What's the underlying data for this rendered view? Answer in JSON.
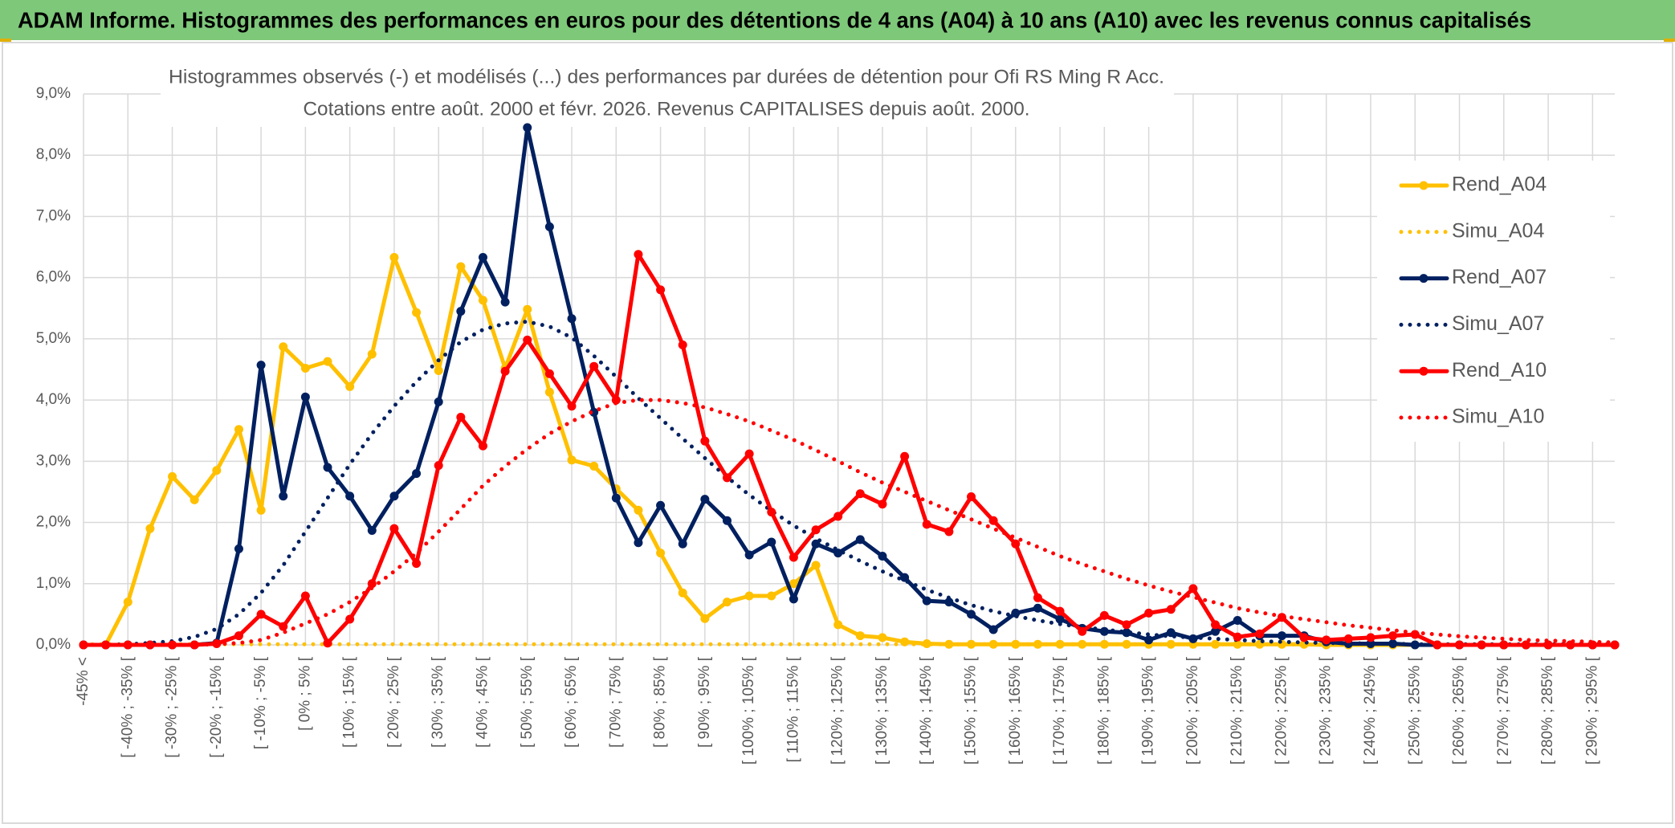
{
  "header": {
    "title": "ADAM Informe. Histogrammes des performances en euros pour des détentions de 4 ans (A04) à 10 ans (A10) avec les revenus connus capitalisés"
  },
  "chart_data": {
    "type": "line",
    "title": "Histogrammes observés (-) et modélisés (...) des performances par durées de détention pour Ofi RS Ming R Acc.",
    "subtitle": "Cotations entre août. 2000 et févr. 2026. Revenus CAPITALISES depuis août. 2000.",
    "categories": [
      "-45% <",
      null,
      "[ -40% ; -35% [",
      null,
      "[ -30% ; -25% [",
      null,
      "[ -20% ; -15% [",
      null,
      "[ -10% ; -5% [",
      null,
      "[ 0% ; 5% [",
      null,
      "[ 10% ; 15% [",
      null,
      "[ 20% ; 25% [",
      null,
      "[ 30% ; 35% [",
      null,
      "[ 40% ; 45% [",
      null,
      "[ 50% ; 55% [",
      null,
      "[ 60% ; 65% [",
      null,
      "[ 70% ; 75% [",
      null,
      "[ 80% ; 85% [",
      null,
      "[ 90% ; 95% [",
      null,
      "[ 100% ; 105% [",
      null,
      "[ 110% ; 115% [",
      null,
      "[ 120% ; 125% [",
      null,
      "[ 130% ; 135% [",
      null,
      "[ 140% ; 145% [",
      null,
      "[ 150% ; 155% [",
      null,
      "[ 160% ; 165% [",
      null,
      "[ 170% ; 175% [",
      null,
      "[ 180% ; 185% [",
      null,
      "[ 190% ; 195% [",
      null,
      "[ 200% ; 205% [",
      null,
      "[ 210% ; 215% [",
      null,
      "[ 220% ; 225% [",
      null,
      "[ 230% ; 235% [",
      null,
      "[ 240% ; 245% [",
      null,
      "[ 250% ; 255% [",
      null,
      "[ 260% ; 265% [",
      null,
      "[ 270% ; 275% [",
      null,
      "[ 280% ; 285% [",
      null,
      "[ 290% ; 295% [",
      null
    ],
    "series": [
      {
        "name": "Rend_A04",
        "color": "#FFC000",
        "dash": "solid",
        "marker": true,
        "values": [
          0,
          0,
          0.7,
          1.9,
          2.75,
          2.37,
          2.85,
          3.52,
          2.2,
          4.87,
          4.52,
          4.63,
          4.22,
          4.75,
          6.33,
          5.43,
          4.48,
          6.18,
          5.63,
          4.52,
          5.48,
          4.13,
          3.02,
          2.92,
          2.55,
          2.2,
          1.5,
          0.85,
          0.43,
          0.7,
          0.8,
          0.8,
          1.0,
          1.3,
          0.33,
          0.15,
          0.12,
          0.05,
          0.02,
          0.01,
          0.01,
          0.01,
          0.01,
          0.01,
          0.01,
          0.01,
          0.01,
          0.01,
          0.01,
          0.01,
          0.01,
          0.01,
          0.01,
          0.01,
          0.01,
          0.01,
          0,
          0,
          0,
          0,
          0,
          0,
          0,
          0,
          0,
          0,
          0,
          0,
          0,
          0
        ]
      },
      {
        "name": "Simu_A04",
        "color": "#FFC000",
        "dash": "dotted",
        "marker": false,
        "values": [
          0.01,
          0.01,
          0.01,
          0.01,
          0.01,
          0.01,
          0.01,
          0.01,
          0.01,
          0.01,
          0.01,
          0.01,
          0.01,
          0.01,
          0.01,
          0.01,
          0.01,
          0.01,
          0.01,
          0.01,
          0.01,
          0.01,
          0.01,
          0.01,
          0.01,
          0.01,
          0.01,
          0.01,
          0.01,
          0.01,
          0.01,
          0.01,
          0.01,
          0.01,
          0.01,
          0.01,
          0.01,
          0.01,
          0.01,
          0.01,
          0.01,
          0.01,
          0.01,
          0.01,
          0.01,
          0.01,
          0.01,
          0.01,
          0.01,
          0.01,
          0.01,
          0.01,
          0.01,
          0.01,
          0.01,
          0.01,
          0,
          0,
          0,
          0,
          0,
          0,
          0,
          0,
          0,
          0,
          0,
          0,
          0,
          0
        ]
      },
      {
        "name": "Rend_A07",
        "color": "#002060",
        "dash": "solid",
        "marker": true,
        "values": [
          0,
          0,
          0,
          0,
          0,
          0,
          0.03,
          1.57,
          4.57,
          2.43,
          4.05,
          2.9,
          2.43,
          1.87,
          2.43,
          2.8,
          3.97,
          5.45,
          6.33,
          5.6,
          8.45,
          6.83,
          5.33,
          3.8,
          2.4,
          1.67,
          2.28,
          1.65,
          2.38,
          2.03,
          1.47,
          1.68,
          0.75,
          1.65,
          1.5,
          1.72,
          1.45,
          1.1,
          0.72,
          0.7,
          0.5,
          0.25,
          0.52,
          0.6,
          0.42,
          0.27,
          0.22,
          0.2,
          0.08,
          0.2,
          0.1,
          0.22,
          0.4,
          0.15,
          0.15,
          0.15,
          0.05,
          0.02,
          0.02,
          0.02,
          0,
          0,
          0,
          0,
          0,
          0,
          0,
          0,
          0,
          0
        ]
      },
      {
        "name": "Simu_A07",
        "color": "#002060",
        "dash": "dotted",
        "marker": false,
        "values": [
          0,
          0,
          0.01,
          0.03,
          0.06,
          0.13,
          0.26,
          0.5,
          0.85,
          1.3,
          1.85,
          2.4,
          2.95,
          3.45,
          3.9,
          4.3,
          4.65,
          4.95,
          5.15,
          5.25,
          5.28,
          5.2,
          5.02,
          4.72,
          4.38,
          4.03,
          3.7,
          3.37,
          3.05,
          2.74,
          2.45,
          2.19,
          1.95,
          1.74,
          1.55,
          1.37,
          1.2,
          1.05,
          0.9,
          0.77,
          0.65,
          0.55,
          0.47,
          0.4,
          0.34,
          0.29,
          0.25,
          0.21,
          0.17,
          0.14,
          0.12,
          0.1,
          0.08,
          0.06,
          0.05,
          0.04,
          0.03,
          0.03,
          0.02,
          0.02,
          0.01,
          0.01,
          0.01,
          0.01,
          0.01,
          0.01,
          0.01,
          0.01,
          0.01,
          0.01
        ]
      },
      {
        "name": "Rend_A10",
        "color": "#FF0000",
        "dash": "solid",
        "marker": true,
        "values": [
          0,
          0,
          0,
          0,
          0,
          0,
          0.02,
          0.15,
          0.5,
          0.3,
          0.8,
          0.03,
          0.42,
          1.0,
          1.9,
          1.33,
          2.93,
          3.72,
          3.25,
          4.47,
          4.98,
          4.43,
          3.9,
          4.55,
          4.0,
          6.38,
          5.8,
          4.9,
          3.33,
          2.73,
          3.12,
          2.17,
          1.43,
          1.88,
          2.1,
          2.47,
          2.3,
          3.08,
          1.97,
          1.85,
          2.42,
          2.03,
          1.65,
          0.77,
          0.55,
          0.22,
          0.48,
          0.33,
          0.52,
          0.58,
          0.92,
          0.33,
          0.13,
          0.18,
          0.45,
          0.12,
          0.08,
          0.1,
          0.12,
          0.15,
          0.17,
          0,
          0,
          0,
          0,
          0,
          0,
          0,
          0,
          0
        ]
      },
      {
        "name": "Simu_A10",
        "color": "#FF0000",
        "dash": "dotted",
        "marker": false,
        "values": [
          0,
          0,
          0,
          0,
          0,
          0,
          0.01,
          0.03,
          0.08,
          0.2,
          0.35,
          0.5,
          0.7,
          0.93,
          1.2,
          1.5,
          1.85,
          2.22,
          2.6,
          2.92,
          3.2,
          3.45,
          3.65,
          3.82,
          3.95,
          4.0,
          4.0,
          3.95,
          3.88,
          3.77,
          3.65,
          3.5,
          3.35,
          3.18,
          3.0,
          2.82,
          2.65,
          2.5,
          2.35,
          2.2,
          2.05,
          1.9,
          1.75,
          1.6,
          1.45,
          1.32,
          1.2,
          1.08,
          0.97,
          0.87,
          0.78,
          0.69,
          0.6,
          0.53,
          0.47,
          0.42,
          0.37,
          0.32,
          0.28,
          0.24,
          0.2,
          0.17,
          0.14,
          0.12,
          0.1,
          0.08,
          0.07,
          0.06,
          0.05,
          0.04
        ]
      }
    ],
    "ylim": [
      0,
      9
    ],
    "yticks": [
      {
        "value": 0,
        "label": "0,0%"
      },
      {
        "value": 1,
        "label": "1,0%"
      },
      {
        "value": 2,
        "label": "2,0%"
      },
      {
        "value": 3,
        "label": "3,0%"
      },
      {
        "value": 4,
        "label": "4,0%"
      },
      {
        "value": 5,
        "label": "5,0%"
      },
      {
        "value": 6,
        "label": "6,0%"
      },
      {
        "value": 7,
        "label": "7,0%"
      },
      {
        "value": 8,
        "label": "8,0%"
      },
      {
        "value": 9,
        "label": "9,0%"
      }
    ],
    "grid": true,
    "xgrid": true,
    "legend": "right"
  }
}
